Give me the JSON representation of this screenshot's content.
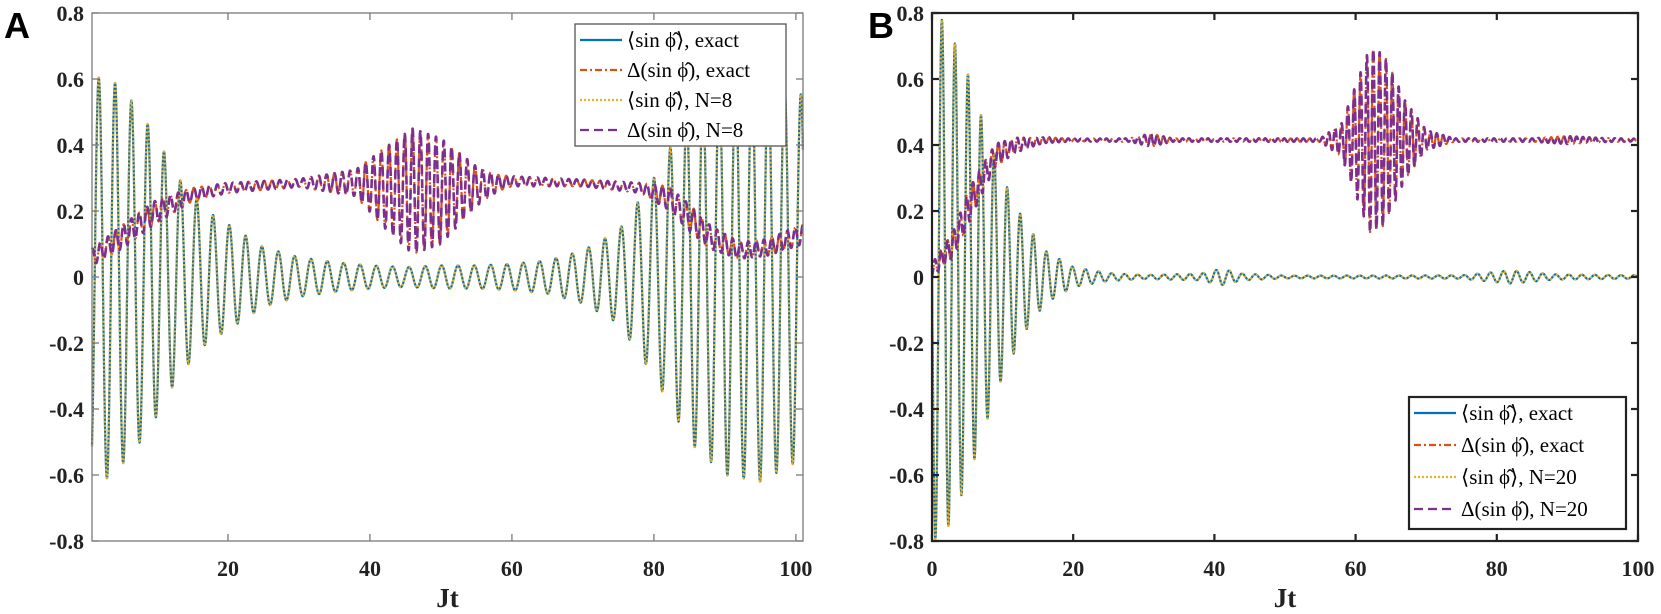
{
  "chart_data": [
    {
      "panel": "A",
      "type": "line",
      "xlabel": "Jt",
      "ylabel": "",
      "xlim": [
        0.85,
        101
      ],
      "ylim": [
        -0.8,
        0.8
      ],
      "xticks": [
        20,
        40,
        60,
        80,
        100
      ],
      "yticks": [
        -0.8,
        -0.6,
        -0.4,
        -0.2,
        0,
        0.2,
        0.4,
        0.6,
        0.8
      ],
      "ytick_labels": [
        "-0.8",
        "-0.6",
        "-0.4",
        "-0.2",
        "0",
        "0.2",
        "0.4",
        "0.6",
        "0.8"
      ],
      "grid": false,
      "legend_position": "top-right",
      "frame_color": "#7a7a7a",
      "envelopes": {
        "mean": {
          "x": [
            0.85,
            3,
            5,
            7,
            10,
            13,
            17,
            20,
            25,
            30,
            35,
            40,
            45,
            50,
            55,
            60,
            65,
            70,
            75,
            80,
            85,
            90,
            95,
            101
          ],
          "center": [
            0,
            0,
            0,
            0,
            0,
            0,
            0,
            0,
            0,
            0,
            0,
            0,
            0,
            0,
            0,
            0,
            0,
            0,
            0,
            0,
            0,
            0,
            0,
            0
          ],
          "amplitude": [
            0.6,
            0.61,
            0.57,
            0.52,
            0.42,
            0.3,
            0.2,
            0.16,
            0.09,
            0.06,
            0.045,
            0.035,
            0.03,
            0.035,
            0.035,
            0.04,
            0.05,
            0.08,
            0.14,
            0.3,
            0.5,
            0.6,
            0.62,
            0.55
          ],
          "oscillation_period": 2.3,
          "first_peak": 1.8
        },
        "delta": {
          "x": [
            0.85,
            5,
            10,
            15,
            20,
            30,
            38,
            42,
            46,
            50,
            55,
            58,
            60,
            70,
            78,
            82,
            85,
            88,
            92,
            96,
            101
          ],
          "center": [
            0.06,
            0.12,
            0.2,
            0.25,
            0.27,
            0.285,
            0.285,
            0.27,
            0.26,
            0.26,
            0.275,
            0.285,
            0.29,
            0.285,
            0.27,
            0.24,
            0.18,
            0.12,
            0.08,
            0.09,
            0.13
          ],
          "amplitude": [
            0.025,
            0.035,
            0.035,
            0.02,
            0.015,
            0.012,
            0.04,
            0.12,
            0.19,
            0.16,
            0.06,
            0.025,
            0.015,
            0.01,
            0.015,
            0.035,
            0.04,
            0.035,
            0.025,
            0.025,
            0.03
          ],
          "oscillation_period": 1.1,
          "first_peak": 0.9
        }
      },
      "series": [
        {
          "name": "⟨sin ϕ̂⟩, exact",
          "group": "mean",
          "color": "#0072BD",
          "style": "solid"
        },
        {
          "name": "Δ(sin ϕ̂), exact",
          "group": "delta",
          "color": "#D95319",
          "style": "dash-dot"
        },
        {
          "name": "⟨sin ϕ̂⟩, N=8",
          "group": "mean",
          "color": "#EDB120",
          "style": "dotted"
        },
        {
          "name": "Δ(sin ϕ̂), N=8",
          "group": "delta",
          "color": "#7E2F8E",
          "style": "dashed"
        }
      ]
    },
    {
      "panel": "B",
      "type": "line",
      "xlabel": "Jt",
      "ylabel": "",
      "xlim": [
        0,
        100
      ],
      "ylim": [
        -0.8,
        0.8
      ],
      "xticks": [
        0,
        20,
        40,
        60,
        80,
        100
      ],
      "yticks": [
        -0.8,
        -0.6,
        -0.4,
        -0.2,
        0,
        0.2,
        0.4,
        0.6,
        0.8
      ],
      "ytick_labels": [
        "-0.8",
        "-0.6",
        "-0.4",
        "-0.2",
        "0",
        "0.2",
        "0.4",
        "0.6",
        "0.8"
      ],
      "grid": false,
      "legend_position": "bottom-right",
      "frame_color": "#222222",
      "envelopes": {
        "mean": {
          "x": [
            0,
            2,
            5,
            8,
            10,
            13,
            16,
            20,
            25,
            30,
            38,
            41,
            44,
            50,
            75,
            82,
            88,
            100
          ],
          "center": [
            0,
            0,
            0,
            0,
            0,
            0,
            0,
            0,
            0,
            0,
            0,
            0,
            0,
            0,
            0,
            0,
            0,
            0
          ],
          "amplitude": [
            0.8,
            0.77,
            0.62,
            0.42,
            0.3,
            0.17,
            0.08,
            0.03,
            0.012,
            0.006,
            0.01,
            0.025,
            0.01,
            0.004,
            0.005,
            0.02,
            0.008,
            0.005
          ],
          "oscillation_period": 1.85,
          "first_peak": 1.4
        },
        "delta": {
          "x": [
            0,
            3,
            6,
            9,
            12,
            16,
            20,
            100
          ],
          "center": [
            0.02,
            0.1,
            0.25,
            0.37,
            0.4,
            0.415,
            0.415,
            0.415
          ],
          "amplitude_x": [
            0,
            5,
            10,
            15,
            20,
            28,
            31,
            34,
            55,
            58,
            62,
            64,
            67,
            70,
            74,
            85,
            90,
            95,
            100
          ],
          "amplitude": [
            0.02,
            0.05,
            0.03,
            0.01,
            0.004,
            0.005,
            0.02,
            0.005,
            0.005,
            0.05,
            0.28,
            0.26,
            0.12,
            0.03,
            0.005,
            0.005,
            0.012,
            0.006,
            0.004
          ],
          "oscillation_period": 0.9,
          "first_peak": 0.4
        }
      },
      "series": [
        {
          "name": "⟨sin ϕ̂⟩, exact",
          "group": "mean",
          "color": "#0072BD",
          "style": "solid"
        },
        {
          "name": "Δ(sin ϕ̂), exact",
          "group": "delta",
          "color": "#D95319",
          "style": "dash-dot"
        },
        {
          "name": "⟨sin ϕ̂⟩, N=20",
          "group": "mean",
          "color": "#EDB120",
          "style": "dotted"
        },
        {
          "name": "Δ(sin ϕ̂), N=20",
          "group": "delta",
          "color": "#7E2F8E",
          "style": "dashed"
        }
      ]
    }
  ]
}
